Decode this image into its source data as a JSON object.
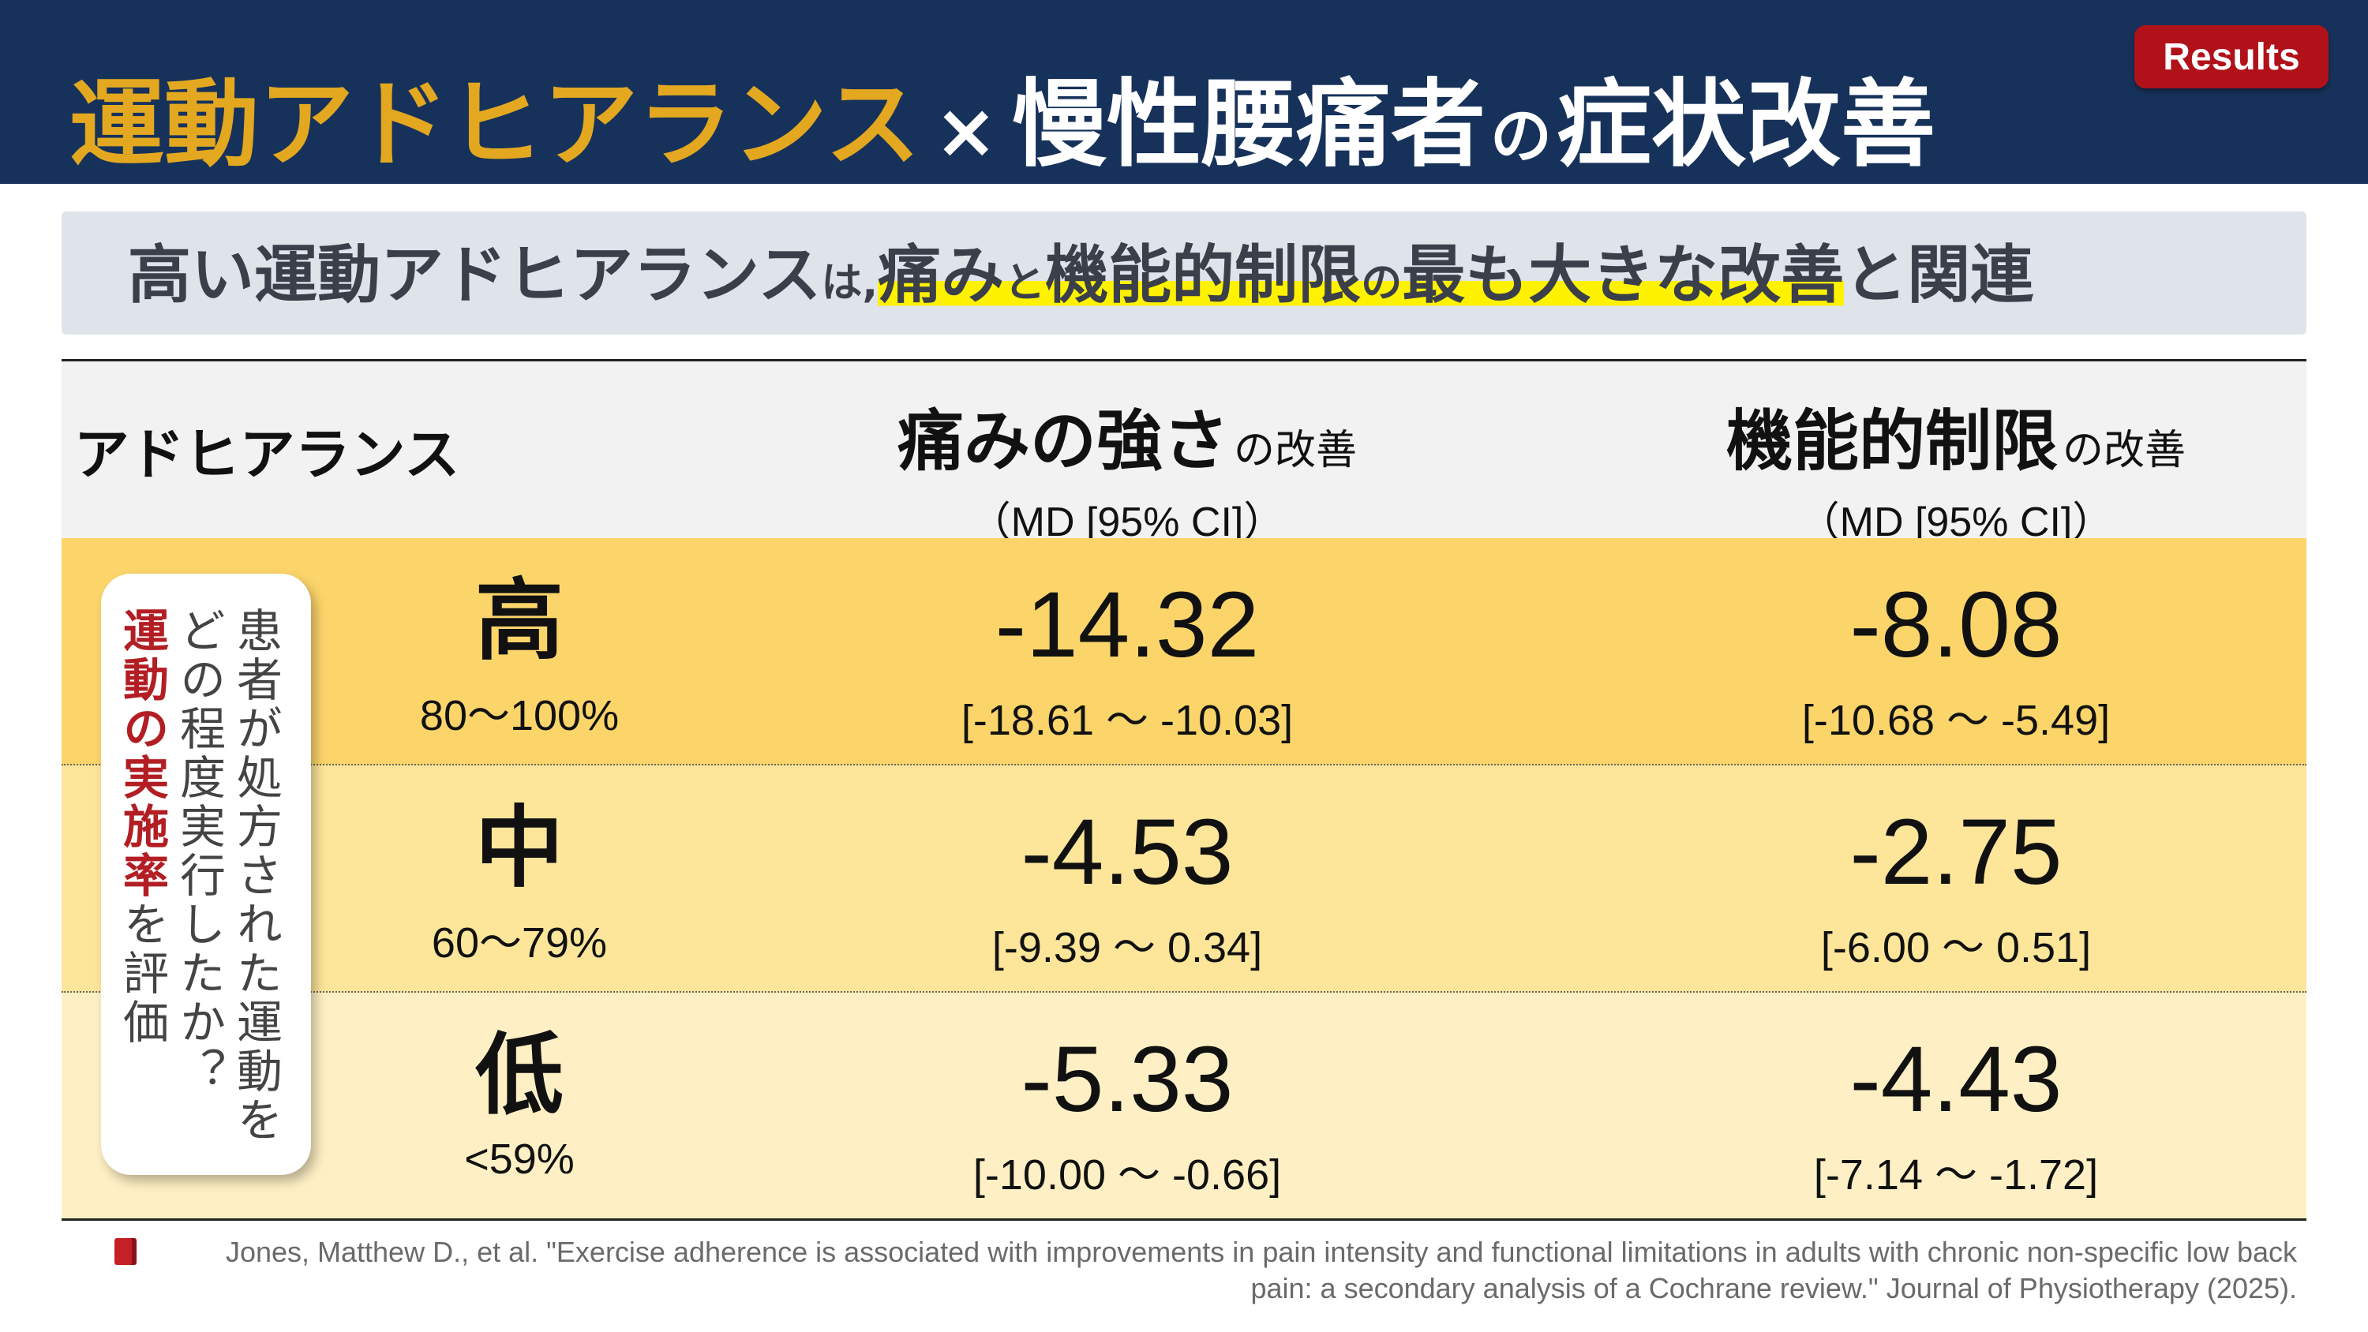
{
  "header": {
    "title_accent": "運動アドヒアランス",
    "title_times": "×",
    "title_part1": "慢性腰痛者",
    "title_no": "の",
    "title_part2": "症状改善",
    "badge": "Results"
  },
  "subtitle": {
    "part1": "高い運動アドヒアランス",
    "part2": "は,",
    "hl1": "痛み",
    "hl2": "と",
    "hl3": "機能的制限",
    "hl4": "の",
    "hl5": "最も大きな改善",
    "part3": "と関連"
  },
  "table": {
    "headers": {
      "adherence": "アドヒアランス",
      "pain_main": "痛みの強さ",
      "pain_suffix": "の改善",
      "pain_sub": "（MD [95% CI]）",
      "func_main": "機能的制限",
      "func_suffix": "の改善",
      "func_sub": "（MD [95% CI]）"
    },
    "rows": [
      {
        "level": "高",
        "range": "80〜100%",
        "pain_md": "-14.32",
        "pain_ci": "[-18.61 〜 -10.03]",
        "func_md": "-8.08",
        "func_ci": "[-10.68 〜 -5.49]"
      },
      {
        "level": "中",
        "range": "60〜79%",
        "pain_md": "-4.53",
        "pain_ci": "[-9.39 〜 0.34]",
        "func_md": "-2.75",
        "func_ci": "[-6.00 〜 0.51]"
      },
      {
        "level": "低",
        "range": "<59%",
        "pain_md": "-5.33",
        "pain_ci": "[-10.00 〜 -0.66]",
        "func_md": "-4.43",
        "func_ci": "[-7.14 〜 -1.72]"
      }
    ]
  },
  "note": {
    "line1": "患者が処方された運動を",
    "line2": "どの程度実行したか？",
    "line3_red": "運動の実施率",
    "line3_rest": "を評価"
  },
  "footer": {
    "line1": "Jones, Matthew D., et al. \"Exercise adherence is associated with improvements in pain intensity and functional limitations in adults with chronic non-specific low back",
    "line2": "pain: a secondary analysis of a Cochrane review.\" Journal of Physiotherapy (2025)."
  },
  "colors": {
    "header_bg": "#17325a",
    "accent": "#e3a820",
    "badge": "#b1121a",
    "row_high": "#fbd56a",
    "row_mid": "#fde59a",
    "row_low": "#fef0c4",
    "highlight": "#fff200",
    "note_red": "#b21e23"
  }
}
